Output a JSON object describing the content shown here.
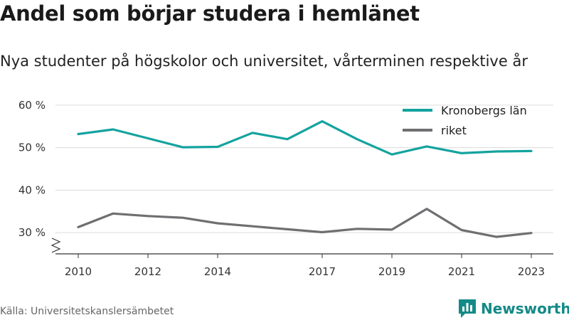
{
  "title": "Andel som börjar studera i hemlänet",
  "subtitle": "Nya studenter på högskolor och universitet, vårterminen respektive år",
  "source": "Källa: Universitetskanslersämbetet",
  "brand": "Newsworthy",
  "colors": {
    "kronoberg": "#14a39e",
    "riket": "#6f6f72",
    "brand": "#138a87"
  },
  "chart_data": {
    "type": "line",
    "title": "Andel som börjar studera i hemlänet",
    "subtitle": "Nya studenter på högskolor och universitet, vårterminen respektive år",
    "xlabel": "",
    "ylabel": "",
    "x": [
      2010,
      2011,
      2012,
      2013,
      2014,
      2015,
      2016,
      2017,
      2018,
      2019,
      2020,
      2021,
      2022,
      2023
    ],
    "x_ticks": [
      {
        "value": 2010,
        "label": "2010"
      },
      {
        "value": 2012,
        "label": "2012"
      },
      {
        "value": 2014,
        "label": "2014"
      },
      {
        "value": 2017,
        "label": "2017"
      },
      {
        "value": 2019,
        "label": "2019"
      },
      {
        "value": 2021,
        "label": "2021"
      },
      {
        "value": 2023,
        "label": "2023"
      }
    ],
    "y_ticks": [
      {
        "value": 30,
        "label": "30 %"
      },
      {
        "value": 40,
        "label": "40 %"
      },
      {
        "value": 50,
        "label": "50 %"
      },
      {
        "value": 60,
        "label": "60 %"
      }
    ],
    "xlim": [
      2009.6,
      2023.6
    ],
    "ylim": [
      25,
      63
    ],
    "grid": true,
    "legend": "top-right",
    "axis_break": true,
    "series": [
      {
        "name": "Kronobergs län",
        "color": "#14a39e",
        "values": [
          53.2,
          54.3,
          52.2,
          50.1,
          50.2,
          53.5,
          52.0,
          56.2,
          52.0,
          48.4,
          50.3,
          48.7,
          49.1,
          49.2
        ]
      },
      {
        "name": "riket",
        "color": "#6f6f72",
        "values": [
          31.3,
          34.5,
          33.9,
          33.5,
          32.2,
          31.5,
          30.8,
          30.1,
          30.9,
          30.7,
          35.6,
          30.6,
          29.0,
          29.9
        ]
      }
    ]
  }
}
